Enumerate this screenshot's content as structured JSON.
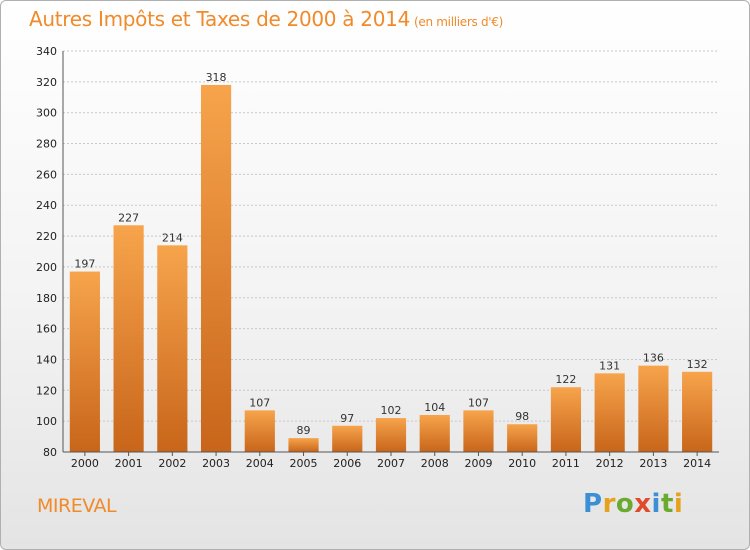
{
  "header": {
    "title": "Autres Impôts et Taxes de 2000 à 2014",
    "unit": "(en milliers d'€)"
  },
  "footer": {
    "place": "MIREVAL",
    "logo_text": "Proxiti"
  },
  "colors": {
    "bar_light": "#f7a44c",
    "bar_dark": "#c8651a",
    "title": "#f08a2a",
    "grid": "#c8c8c8",
    "logo_letters": [
      "#3b8fd6",
      "#e6a21f",
      "#6aaa2e",
      "#e04b2c",
      "#3b8fd6",
      "#6aaa2e",
      "#e6a21f"
    ]
  },
  "chart_data": {
    "type": "bar",
    "title": "Autres Impôts et Taxes de 2000 à 2014",
    "subtitle": "(en milliers d'€)",
    "categories": [
      "2000",
      "2001",
      "2002",
      "2003",
      "2004",
      "2005",
      "2006",
      "2007",
      "2008",
      "2009",
      "2010",
      "2011",
      "2012",
      "2013",
      "2014"
    ],
    "values": [
      197,
      227,
      214,
      318,
      107,
      89,
      97,
      102,
      104,
      107,
      98,
      122,
      131,
      136,
      132
    ],
    "ylim": [
      80,
      340
    ],
    "yticks": [
      80,
      100,
      120,
      140,
      160,
      180,
      200,
      220,
      240,
      260,
      280,
      300,
      320,
      340
    ],
    "grid": true,
    "data_labels": true
  }
}
